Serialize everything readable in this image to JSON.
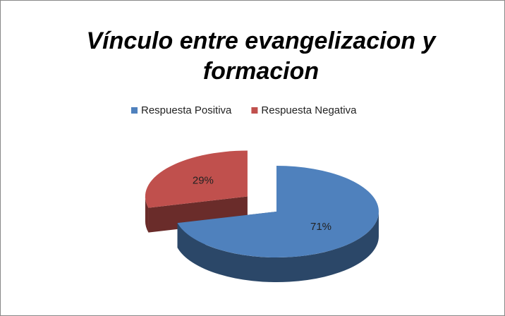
{
  "chart_data": {
    "type": "pie",
    "title": "Vínculo entre evangelizacion y formacion",
    "categories": [
      "Respuesta Positiva",
      "Respuesta Negativa"
    ],
    "values": [
      71,
      29
    ],
    "value_labels": [
      "71%",
      "29%"
    ],
    "colors": [
      "#4f81bd",
      "#c0504d"
    ],
    "legend": "top"
  }
}
